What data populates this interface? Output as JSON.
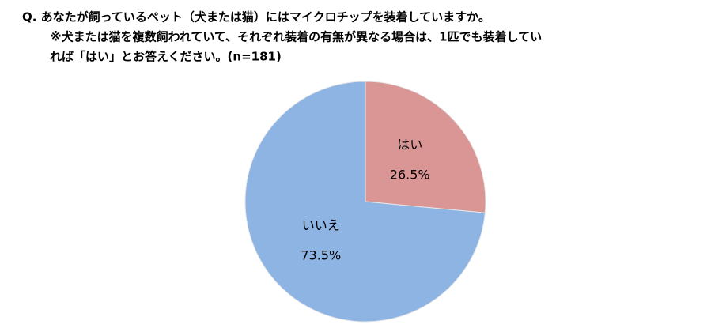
{
  "chart_data": {
    "type": "pie",
    "title": "Q. あなたが飼っているペット（犬または猫）にはマイクロチップを装着していますか。",
    "subtitle_lines": [
      "※犬または猫を複数飼われていて、それぞれ装着の有無が異なる場合は、1匹でも装着してい",
      "れば「はい」とお答えください。(n=181)"
    ],
    "categories": [
      "はい",
      "いいえ"
    ],
    "values": [
      26.5,
      73.5
    ],
    "value_labels": [
      "26.5%",
      "73.5%"
    ],
    "colors": [
      "#D99694",
      "#8EB4E3"
    ]
  }
}
